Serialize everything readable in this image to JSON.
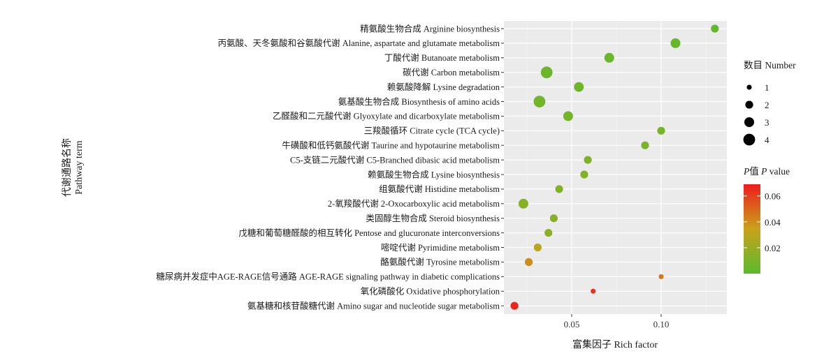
{
  "chart_data": {
    "type": "scatter",
    "xlabel": "富集因子 Rich factor",
    "ylabel_line1": "代谢通路名称",
    "ylabel_line2": "Pathway term",
    "xlim": [
      0.0,
      0.135
    ],
    "x_ticks": [
      0.05,
      0.1
    ],
    "x_tick_labels": [
      "0.05",
      "0.10"
    ],
    "grid": true,
    "points": [
      {
        "term": "精氨酸生物合成 Arginine biosynthesis",
        "rich_factor": 0.13,
        "number": 2,
        "p_value": 0.003
      },
      {
        "term": "丙氨酸、天冬氨酸和谷氨酸代谢 Alanine, aspartate and glutamate metabolism",
        "rich_factor": 0.108,
        "number": 3,
        "p_value": 0.004
      },
      {
        "term": "丁酸代谢 Butanoate metabolism",
        "rich_factor": 0.071,
        "number": 3,
        "p_value": 0.005
      },
      {
        "term": "碳代谢 Carbon metabolism",
        "rich_factor": 0.036,
        "number": 4,
        "p_value": 0.006
      },
      {
        "term": "赖氨酸降解 Lysine degradation",
        "rich_factor": 0.054,
        "number": 3,
        "p_value": 0.006
      },
      {
        "term": "氨基酸生物合成 Biosynthesis of amino acids",
        "rich_factor": 0.032,
        "number": 4,
        "p_value": 0.007
      },
      {
        "term": "乙醛酸和二元酸代谢 Glyoxylate and dicarboxylate metabolism",
        "rich_factor": 0.048,
        "number": 3,
        "p_value": 0.008
      },
      {
        "term": "三羧酸循环 Citrate cycle (TCA cycle)",
        "rich_factor": 0.1,
        "number": 2,
        "p_value": 0.009
      },
      {
        "term": "牛磺酸和低钙氨酸代谢 Taurine and hypotaurine metabolism",
        "rich_factor": 0.091,
        "number": 2,
        "p_value": 0.01
      },
      {
        "term": "C5-支链二元酸代谢 C5-Branched dibasic acid metabolism",
        "rich_factor": 0.059,
        "number": 2,
        "p_value": 0.011
      },
      {
        "term": "赖氨酸生物合成 Lysine biosynthesis",
        "rich_factor": 0.057,
        "number": 2,
        "p_value": 0.012
      },
      {
        "term": "组氨酸代谢 Histidine metabolism",
        "rich_factor": 0.043,
        "number": 2,
        "p_value": 0.013
      },
      {
        "term": "2-氧羧酸代谢 2-Oxocarboxylic acid metabolism",
        "rich_factor": 0.023,
        "number": 3,
        "p_value": 0.014
      },
      {
        "term": "类固醇生物合成 Steroid biosynthesis",
        "rich_factor": 0.04,
        "number": 2,
        "p_value": 0.015
      },
      {
        "term": "戊糖和葡萄糖醛酸的相互转化 Pentose and glucuronate interconversions",
        "rich_factor": 0.037,
        "number": 2,
        "p_value": 0.016
      },
      {
        "term": "嘧啶代谢 Pyrimidine metabolism",
        "rich_factor": 0.031,
        "number": 2,
        "p_value": 0.03
      },
      {
        "term": "酪氨酸代谢 Tyrosine metabolism",
        "rich_factor": 0.026,
        "number": 2,
        "p_value": 0.04
      },
      {
        "term": "糖尿病并发症中AGE-RAGE信号通路 AGE-RAGE signaling pathway in diabetic complications",
        "rich_factor": 0.1,
        "number": 1,
        "p_value": 0.045
      },
      {
        "term": "氧化磷酸化 Oxidative phosphorylation",
        "rich_factor": 0.062,
        "number": 1,
        "p_value": 0.063
      },
      {
        "term": "氨基糖和核苷酸糖代谢 Amino sugar and nucleotide sugar metabolism",
        "rich_factor": 0.018,
        "number": 2,
        "p_value": 0.067
      }
    ],
    "size_legend": {
      "title": "数目 Number",
      "values": [
        1,
        2,
        3,
        4
      ],
      "labels": [
        "1",
        "2",
        "3",
        "4"
      ]
    },
    "color_legend": {
      "title_italic": "P",
      "title_mid": "值 ",
      "title_italic2": "P",
      "title_end": " value",
      "range": [
        0.0,
        0.069
      ],
      "ticks": [
        0.06,
        0.04,
        0.02
      ],
      "tick_labels": [
        "0.06",
        "0.04",
        "0.02"
      ],
      "color_low": "#5aba2e",
      "color_mid": "#c8a21a",
      "color_high": "#ee1c1c"
    },
    "panel_color": "#ebebeb",
    "grid_color": "#ffffff"
  }
}
